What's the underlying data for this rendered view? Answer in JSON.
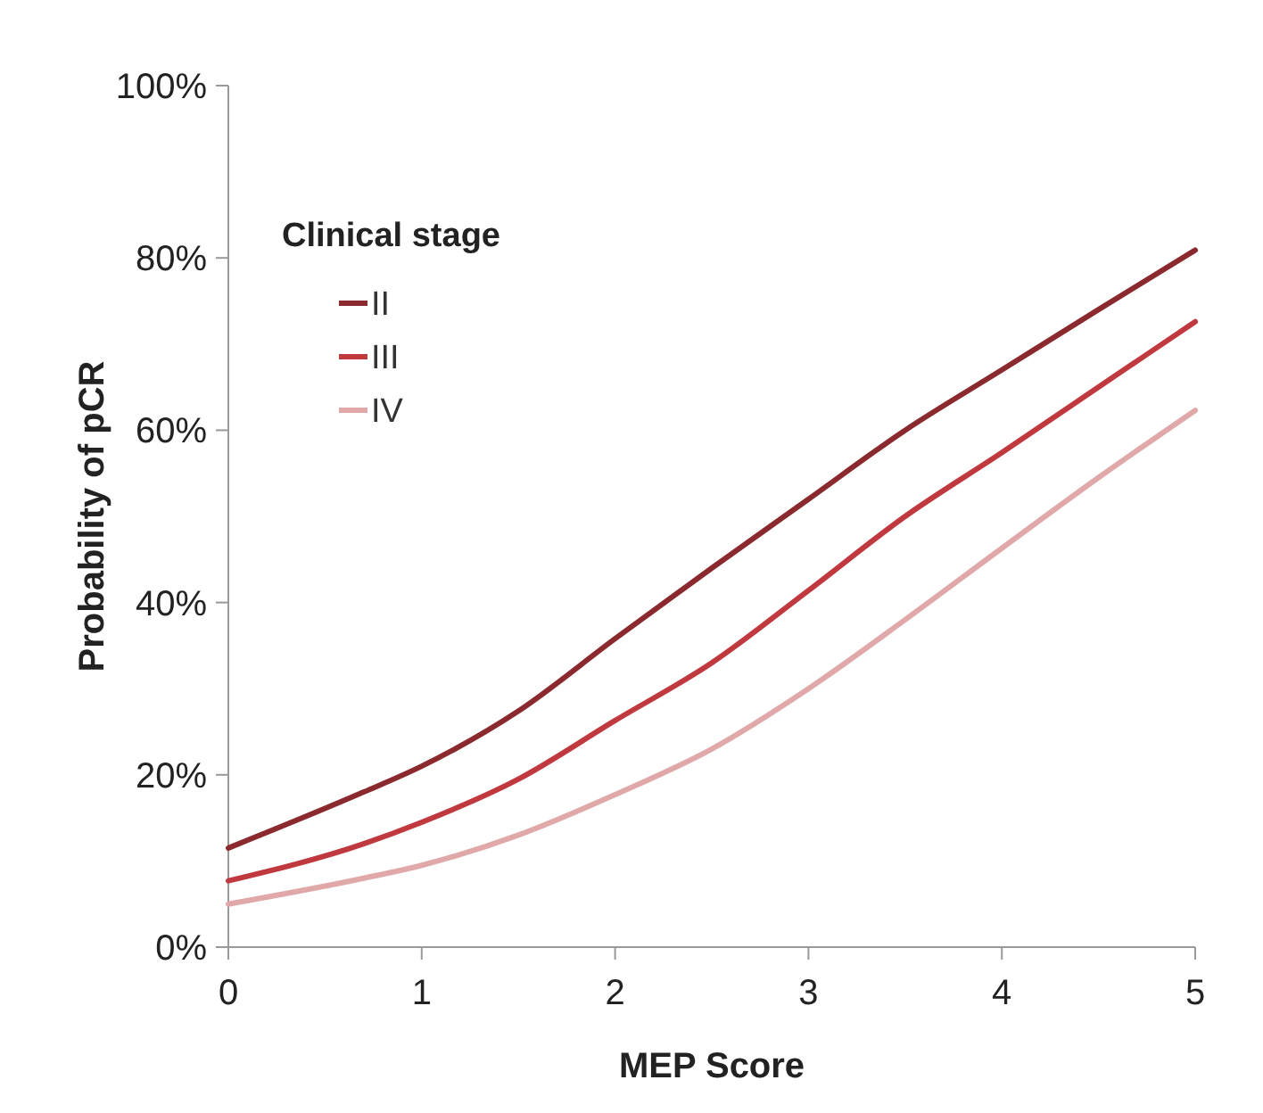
{
  "chart_data": {
    "type": "line",
    "xlabel": "MEP Score",
    "ylabel": "Probability of pCR",
    "legend_title": "Clinical stage",
    "legend": "top left",
    "grid": false,
    "marker": "none",
    "line_style": "solid",
    "x": [
      0,
      0.7,
      1,
      1.5,
      2,
      2.5,
      3,
      3.5,
      4,
      4.5,
      5
    ],
    "series": [
      {
        "name": "II",
        "color": "#8b2a2e",
        "values": [
          11.5,
          18,
          21,
          27.4,
          35.8,
          44,
          52,
          60,
          67,
          74,
          80.9
        ]
      },
      {
        "name": "III",
        "color": "#c0393f",
        "values": [
          7.7,
          12,
          14.5,
          19.5,
          26.3,
          33,
          41.4,
          50,
          57.4,
          65,
          72.6
        ]
      },
      {
        "name": "IV",
        "color": "#e0a8a8",
        "values": [
          5,
          8,
          9.5,
          13,
          17.7,
          23,
          30,
          38,
          46.3,
          54.5,
          62.3
        ]
      }
    ],
    "xlim": [
      0,
      5
    ],
    "xticks": [
      0,
      1,
      2,
      3,
      4,
      5
    ],
    "ylim": [
      0,
      100
    ],
    "yticks": [
      {
        "value": 0,
        "label": "0%"
      },
      {
        "value": 20,
        "label": "20%"
      },
      {
        "value": 40,
        "label": "40%"
      },
      {
        "value": 60,
        "label": "60%"
      },
      {
        "value": 80,
        "label": "80%"
      },
      {
        "value": 100,
        "label": "100%"
      }
    ]
  }
}
